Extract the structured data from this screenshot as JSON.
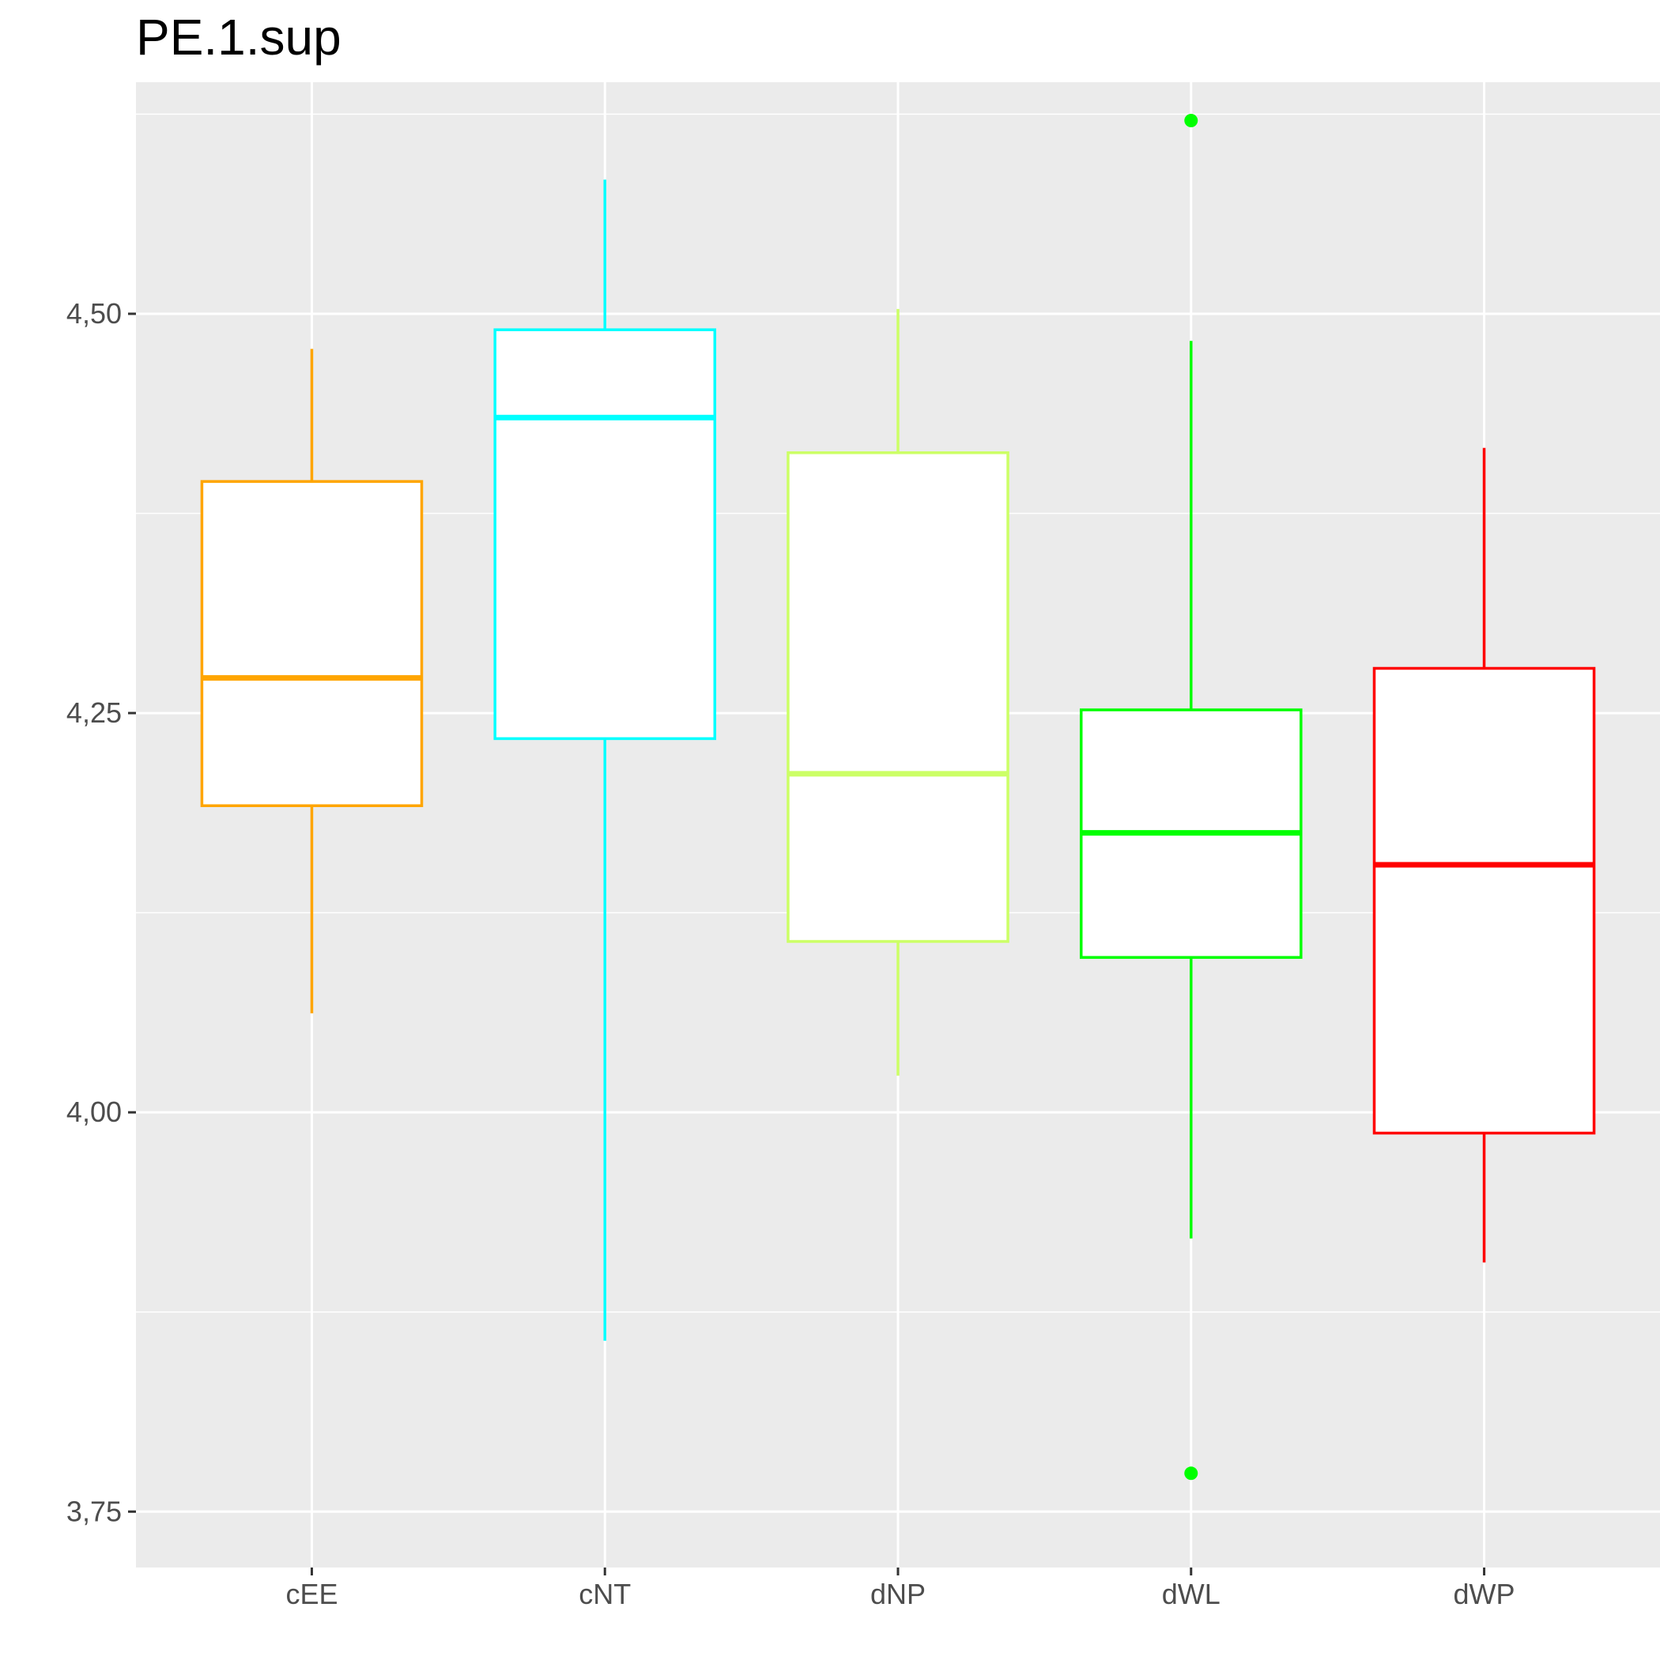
{
  "chart_data": {
    "type": "boxplot",
    "title": "PE.1.sup",
    "xlabel": "",
    "ylabel": "",
    "ylim": [
      3.715,
      4.645
    ],
    "y_ticks_major": [
      3.75,
      4.0,
      4.25,
      4.5
    ],
    "y_tick_labels": [
      "3,75",
      "4,00",
      "4,25",
      "4,50"
    ],
    "y_ticks_minor": [
      3.875,
      4.125,
      4.375,
      4.625
    ],
    "grid": true,
    "legend": "none",
    "panel_color": "#ebebeb",
    "categories": [
      "cEE",
      "cNT",
      "dNP",
      "dWL",
      "dWP"
    ],
    "boxes": [
      {
        "category": "cEE",
        "color": "#FFA500",
        "whisker_low": 4.062,
        "q1": 4.192,
        "median": 4.272,
        "q3": 4.395,
        "whisker_high": 4.478,
        "outliers": []
      },
      {
        "category": "cNT",
        "color": "#00FFFF",
        "whisker_low": 3.857,
        "q1": 4.234,
        "median": 4.435,
        "q3": 4.49,
        "whisker_high": 4.584,
        "outliers": []
      },
      {
        "category": "dNP",
        "color": "#CCFF66",
        "whisker_low": 4.023,
        "q1": 4.107,
        "median": 4.212,
        "q3": 4.413,
        "whisker_high": 4.503,
        "outliers": []
      },
      {
        "category": "dWL",
        "color": "#00FF00",
        "whisker_low": 3.921,
        "q1": 4.097,
        "median": 4.175,
        "q3": 4.252,
        "whisker_high": 4.483,
        "outliers": [
          4.621,
          3.774
        ]
      },
      {
        "category": "dWP",
        "color": "#FF0000",
        "whisker_low": 3.906,
        "q1": 3.987,
        "median": 4.155,
        "q3": 4.278,
        "whisker_high": 4.416,
        "outliers": []
      }
    ]
  }
}
